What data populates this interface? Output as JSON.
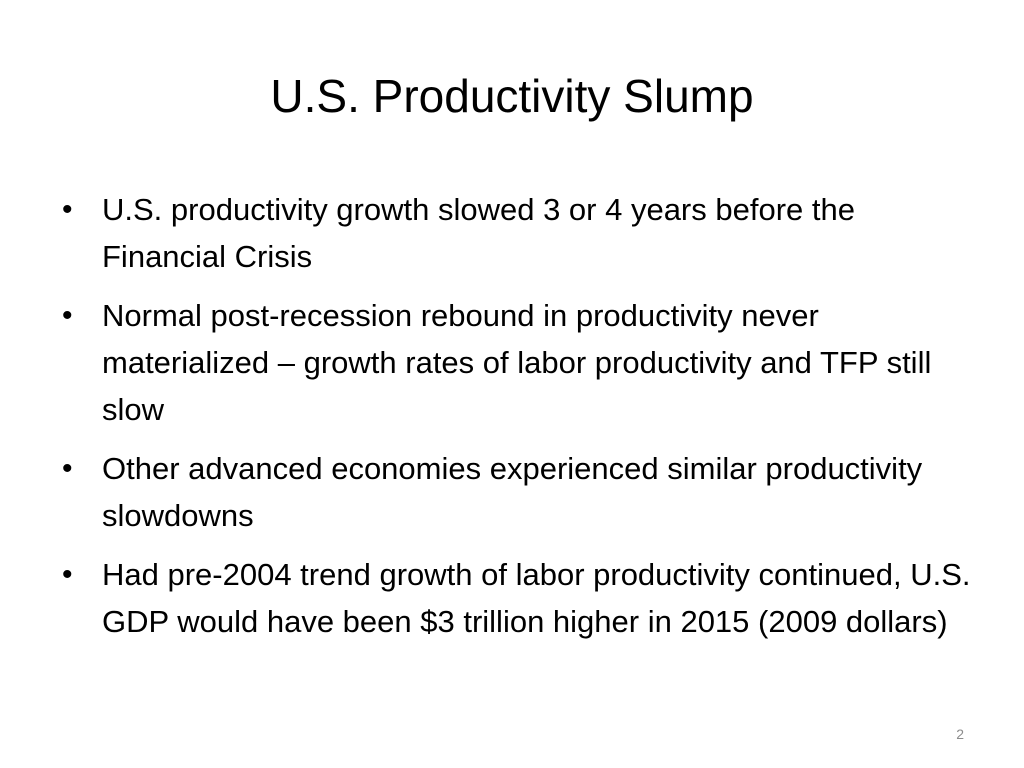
{
  "slide": {
    "title": "U.S. Productivity Slump",
    "bullets": [
      "U.S.  productivity growth slowed 3 or 4 years before the Financial Crisis",
      "Normal post-recession rebound in productivity never materialized – growth rates of labor productivity and TFP still slow",
      "Other advanced economies experienced similar productivity slowdowns",
      "Had pre-2004 trend growth of labor productivity continued, U.S. GDP would have been $3 trillion higher in 2015 (2009 dollars)"
    ],
    "bullet_glyph": "•",
    "page_number": "2"
  }
}
